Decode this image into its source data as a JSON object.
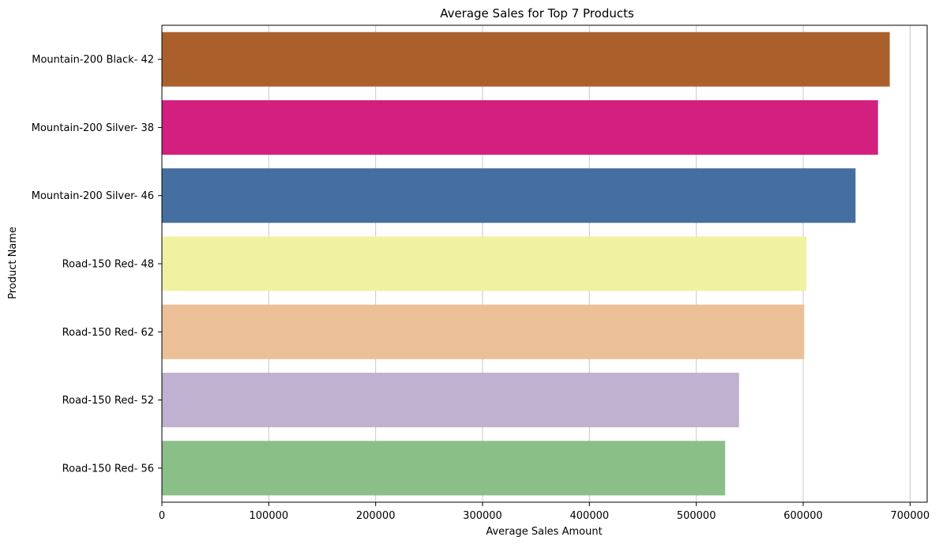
{
  "chart_data": {
    "type": "bar",
    "orientation": "horizontal",
    "title": "Average Sales for Top 7 Products",
    "xlabel": "Average Sales Amount",
    "ylabel": "Product Name",
    "xlim": [
      0,
      716000
    ],
    "x_ticks": [
      0,
      100000,
      200000,
      300000,
      400000,
      500000,
      600000,
      700000
    ],
    "x_tick_labels": [
      "0",
      "100000",
      "200000",
      "300000",
      "400000",
      "500000",
      "600000",
      "700000"
    ],
    "grid": "x-axis vertical lines",
    "categories": [
      "Mountain-200 Black- 42",
      "Mountain-200 Silver- 38",
      "Mountain-200 Silver- 46",
      "Road-150 Red- 48",
      "Road-150 Red- 62",
      "Road-150 Red- 52",
      "Road-150 Red- 56"
    ],
    "values": [
      681000,
      670000,
      649000,
      603000,
      601000,
      540000,
      527000
    ],
    "colors": [
      "#ab602c",
      "#d31f7e",
      "#456fa0",
      "#f1f1a2",
      "#ecc096",
      "#bfb1cf",
      "#8abf88"
    ]
  }
}
